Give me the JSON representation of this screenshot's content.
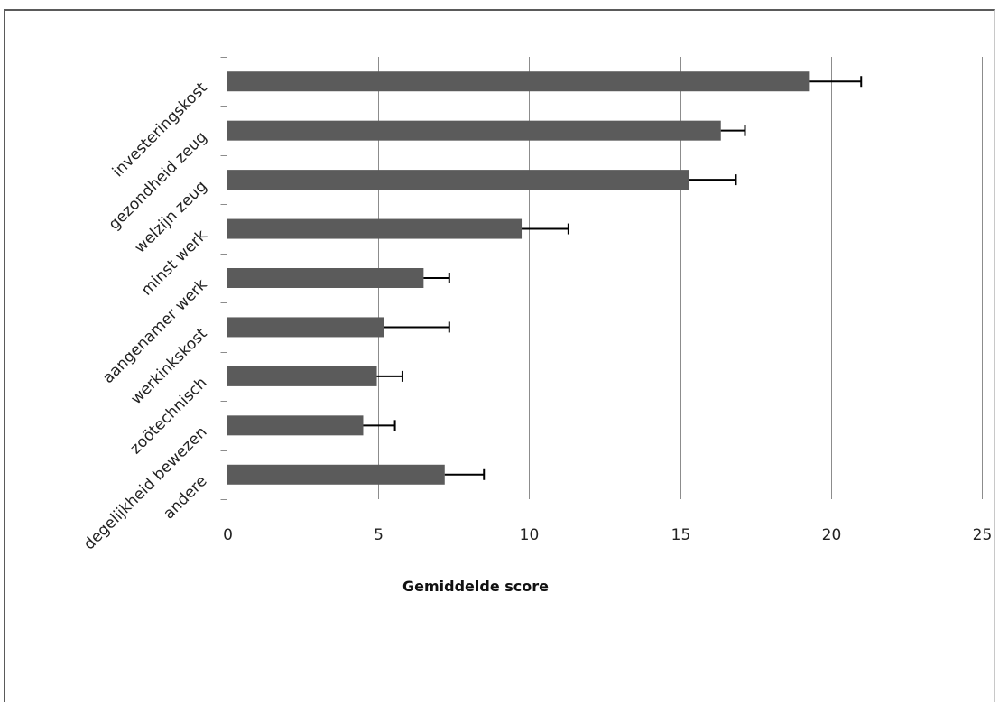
{
  "chart_data": {
    "type": "bar",
    "orientation": "horizontal",
    "categories": [
      "investeringskost",
      "gezondheid zeug",
      "welzijn zeug",
      "minst werk",
      "aangenamer werk",
      "werkinkskost",
      "zoötechnisch",
      "degelijkheid bewezen",
      "andere"
    ],
    "values": [
      19.3,
      16.35,
      15.3,
      9.75,
      6.5,
      5.2,
      4.95,
      4.5,
      7.2
    ],
    "errors": [
      1.7,
      0.8,
      1.55,
      1.55,
      0.85,
      2.15,
      0.85,
      1.05,
      1.3
    ],
    "xlabel": "Gemiddelde score",
    "ylabel": "",
    "xlim": [
      0,
      25
    ],
    "xticks": [
      0,
      5,
      10,
      15,
      20,
      25
    ],
    "grid": "vertical",
    "legend": "none",
    "colors": {
      "bar": "#5b5b5b",
      "grid": "#8c8c8c",
      "error": "#000000",
      "axis": "#8c8c8c"
    }
  }
}
